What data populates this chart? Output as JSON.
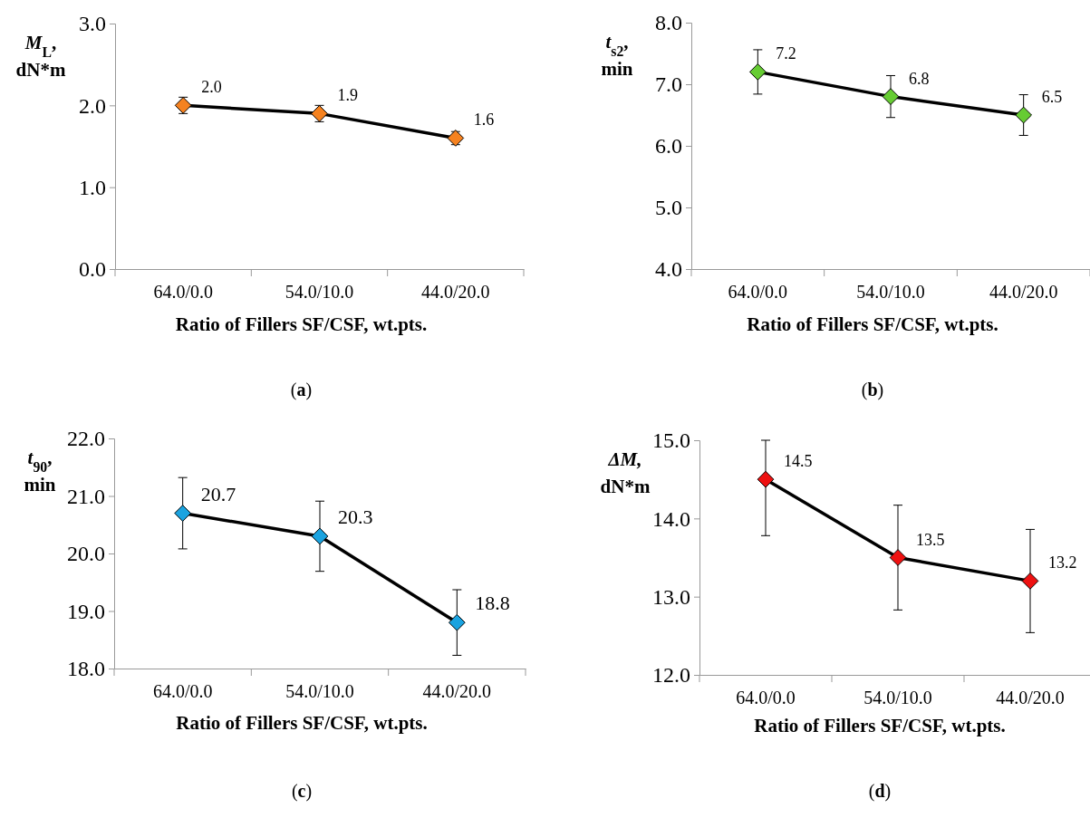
{
  "chart_data": [
    {
      "type": "line",
      "ylabel": "M$_{L}$, dN*m",
      "xlabel": "Ratio of Fillers SF/CSF, wt.pts.",
      "categories": [
        "64.0/0.0",
        "54.0/10.0",
        "44.0/20.0"
      ],
      "series": [
        {
          "color": "#f58220",
          "values": [
            2.0,
            1.9,
            1.6
          ],
          "value_labels": [
            "2.0",
            "1.9",
            "1.6"
          ],
          "errors": [
            0.1,
            0.1,
            0.08
          ]
        }
      ],
      "ylim": [
        0,
        3
      ],
      "yticks": [
        {
          "value": 0,
          "label": "0.0"
        },
        {
          "value": 1,
          "label": "1.0"
        },
        {
          "value": 2,
          "label": "2.0"
        },
        {
          "value": 3,
          "label": "3.0"
        }
      ],
      "marker": "diamond",
      "line_style": "solid",
      "annotations": [
        "(a)"
      ]
    },
    {
      "type": "line",
      "ylabel": "t$_{s2}$, min",
      "xlabel": "Ratio of Fillers SF/CSF, wt.pts.",
      "categories": [
        "64.0/0.0",
        "54.0/10.0",
        "44.0/20.0"
      ],
      "series": [
        {
          "color": "#66cc33",
          "values": [
            7.2,
            6.8,
            6.5
          ],
          "value_labels": [
            "7.2",
            "6.8",
            "6.5"
          ],
          "errors": [
            0.36,
            0.34,
            0.33
          ]
        }
      ],
      "ylim": [
        4,
        8
      ],
      "yticks": [
        {
          "value": 4,
          "label": "4.0"
        },
        {
          "value": 5,
          "label": "5.0"
        },
        {
          "value": 6,
          "label": "6.0"
        },
        {
          "value": 7,
          "label": "7.0"
        },
        {
          "value": 8,
          "label": "8.0"
        }
      ],
      "marker": "diamond",
      "line_style": "solid",
      "annotations": [
        "(b)"
      ]
    },
    {
      "type": "line",
      "ylabel": "t$_{90}$, min",
      "xlabel": "Ratio of Fillers SF/CSF, wt.pts.",
      "categories": [
        "64.0/0.0",
        "54.0/10.0",
        "44.0/20.0"
      ],
      "series": [
        {
          "color": "#1aa3e0",
          "values": [
            20.7,
            20.3,
            18.8
          ],
          "value_labels": [
            "20.7",
            "20.3",
            "18.8"
          ],
          "errors": [
            0.62,
            0.61,
            0.57
          ]
        }
      ],
      "ylim": [
        18,
        22
      ],
      "yticks": [
        {
          "value": 18,
          "label": "18.0"
        },
        {
          "value": 19,
          "label": "19.0"
        },
        {
          "value": 20,
          "label": "20.0"
        },
        {
          "value": 21,
          "label": "21.0"
        },
        {
          "value": 22,
          "label": "22.0"
        }
      ],
      "marker": "diamond",
      "line_style": "solid",
      "annotations": [
        "(c)"
      ]
    },
    {
      "type": "line",
      "ylabel": "ΔM, dN*m",
      "xlabel": "Ratio of Fillers SF/CSF, wt.pts.",
      "categories": [
        "64.0/0.0",
        "54.0/10.0",
        "44.0/20.0"
      ],
      "series": [
        {
          "color": "#ee1111",
          "values": [
            14.5,
            13.5,
            13.2
          ],
          "value_labels": [
            "14.5",
            "13.5",
            "13.2"
          ],
          "errors": [
            [
              13.78,
              15.0
            ],
            0.67,
            0.66
          ]
        }
      ],
      "ylim": [
        12,
        15
      ],
      "yticks": [
        {
          "value": 12,
          "label": "12.0"
        },
        {
          "value": 13,
          "label": "13.0"
        },
        {
          "value": 14,
          "label": "14.0"
        },
        {
          "value": 15,
          "label": "15.0"
        }
      ],
      "marker": "diamond",
      "line_style": "solid",
      "annotations": [
        "(d)"
      ]
    }
  ]
}
